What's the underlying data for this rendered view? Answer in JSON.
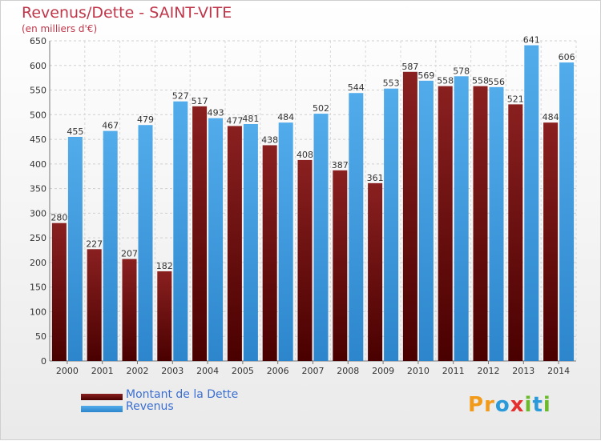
{
  "title": "Revenus/Dette - SAINT-VITE",
  "subtitle": "(en milliers d'€)",
  "legend": {
    "debt_label": "Montant de la Dette",
    "revenue_label": "Revenus"
  },
  "logo": {
    "text": "Proxiti"
  },
  "colors": {
    "debt": "#7a1414",
    "debt_dark": "#5a0000",
    "revenue": "#4aa3e6",
    "revenue_dark": "#2a7cc4",
    "title": "#c0364a",
    "logo_p": "#f29a1a",
    "logo_r": "#f29a1a",
    "logo_o": "#2a9ad8",
    "logo_x": "#e53030",
    "logo_i": "#6aba2a",
    "logo_t": "#2a9ad8",
    "logo_i2": "#6aba2a"
  },
  "chart_data": {
    "type": "bar",
    "categories": [
      "2000",
      "2001",
      "2002",
      "2003",
      "2004",
      "2005",
      "2006",
      "2007",
      "2008",
      "2009",
      "2010",
      "2011",
      "2012",
      "2013",
      "2014"
    ],
    "series": [
      {
        "name": "Montant de la Dette",
        "values": [
          280,
          227,
          207,
          182,
          517,
          477,
          438,
          408,
          387,
          361,
          587,
          558,
          558,
          521,
          484
        ]
      },
      {
        "name": "Revenus",
        "values": [
          455,
          467,
          479,
          527,
          493,
          481,
          484,
          502,
          544,
          553,
          569,
          578,
          556,
          641,
          606
        ]
      }
    ],
    "title": "Revenus/Dette - SAINT-VITE",
    "ylabel": "(en milliers d'€)",
    "ylim": [
      0,
      650
    ],
    "yticks": [
      0,
      50,
      100,
      150,
      200,
      250,
      300,
      350,
      400,
      450,
      500,
      550,
      600,
      650
    ],
    "grid": true,
    "legend_position": "bottom-left"
  }
}
